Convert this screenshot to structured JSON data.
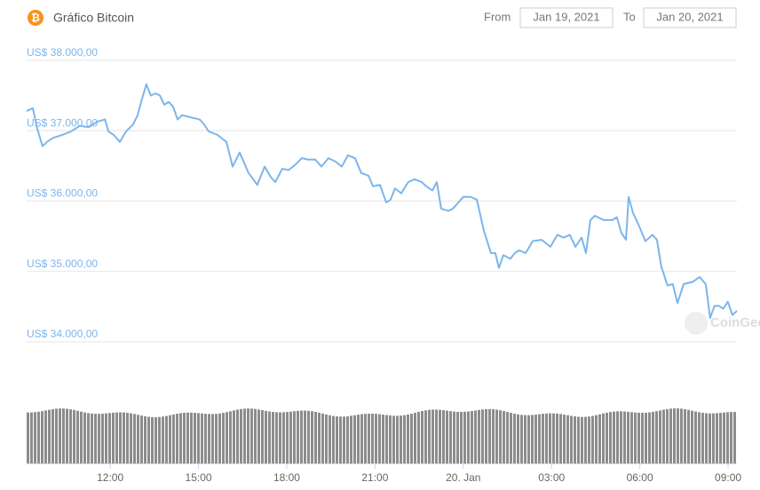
{
  "controls": {
    "from_label": "From",
    "from_date": "Jan 19, 2021",
    "to_label": "To",
    "to_date": "Jan 20, 2021"
  },
  "chart_data": {
    "type": "line",
    "title": "Gráfico Bitcoin",
    "watermark": "CoinGecko",
    "color": "#7cb5ec",
    "grid": true,
    "x": [
      9.16,
      9.37,
      9.52,
      9.7,
      9.85,
      10.07,
      10.37,
      10.67,
      10.97,
      11.27,
      11.57,
      11.82,
      11.94,
      12.12,
      12.33,
      12.54,
      12.78,
      12.93,
      13.08,
      13.23,
      13.38,
      13.54,
      13.69,
      13.84,
      13.99,
      14.14,
      14.29,
      14.44,
      14.74,
      15.04,
      15.19,
      15.35,
      15.65,
      15.95,
      16.16,
      16.4,
      16.7,
      17.0,
      17.25,
      17.46,
      17.61,
      17.85,
      18.06,
      18.3,
      18.51,
      18.72,
      18.97,
      19.18,
      19.42,
      19.66,
      19.87,
      20.08,
      20.32,
      20.53,
      20.78,
      20.93,
      21.17,
      21.38,
      21.53,
      21.68,
      21.89,
      22.13,
      22.34,
      22.59,
      22.74,
      22.95,
      23.1,
      23.25,
      23.49,
      23.64,
      23.79,
      24.0,
      24.25,
      24.46,
      24.7,
      24.94,
      25.09,
      25.21,
      25.36,
      25.6,
      25.75,
      25.9,
      26.12,
      26.36,
      26.66,
      26.96,
      27.2,
      27.41,
      27.62,
      27.81,
      28.02,
      28.17,
      28.32,
      28.47,
      28.77,
      29.07,
      29.22,
      29.37,
      29.53,
      29.62,
      29.77,
      29.98,
      30.19,
      30.43,
      30.58,
      30.73,
      30.94,
      31.12,
      31.28,
      31.49,
      31.79,
      32.03,
      32.24,
      32.39,
      32.54,
      32.69,
      32.84,
      32.99,
      33.15,
      33.3
    ],
    "values": [
      37280,
      37320,
      37030,
      36780,
      36840,
      36900,
      36940,
      36990,
      37070,
      37050,
      37130,
      37160,
      36990,
      36940,
      36840,
      36990,
      37090,
      37220,
      37450,
      37660,
      37500,
      37530,
      37500,
      37370,
      37410,
      37340,
      37160,
      37220,
      37190,
      37160,
      37090,
      36990,
      36940,
      36840,
      36490,
      36690,
      36400,
      36230,
      36490,
      36340,
      36270,
      36460,
      36440,
      36520,
      36610,
      36590,
      36590,
      36490,
      36610,
      36560,
      36490,
      36650,
      36610,
      36400,
      36360,
      36210,
      36230,
      35980,
      36020,
      36180,
      36110,
      36270,
      36310,
      36270,
      36210,
      36150,
      36270,
      35890,
      35860,
      35890,
      35960,
      36060,
      36060,
      36020,
      35580,
      35260,
      35260,
      35050,
      35230,
      35180,
      35260,
      35300,
      35260,
      35430,
      35450,
      35350,
      35520,
      35480,
      35520,
      35350,
      35480,
      35260,
      35730,
      35790,
      35730,
      35730,
      35770,
      35550,
      35450,
      36060,
      35830,
      35640,
      35430,
      35520,
      35450,
      35070,
      34800,
      34820,
      34550,
      34820,
      34850,
      34920,
      34820,
      34340,
      34510,
      34510,
      34470,
      34570,
      34380,
      34440
    ],
    "xlim": [
      9.16,
      33.3
    ],
    "xticks": [
      {
        "value": 12,
        "label": "12:00"
      },
      {
        "value": 15,
        "label": "15:00"
      },
      {
        "value": 18,
        "label": "18:00"
      },
      {
        "value": 21,
        "label": "21:00"
      },
      {
        "value": 24,
        "label": "20. Jan"
      },
      {
        "value": 27,
        "label": "03:00"
      },
      {
        "value": 30,
        "label": "06:00"
      },
      {
        "value": 33,
        "label": "09:00"
      }
    ],
    "ylim": [
      34000,
      38000
    ],
    "yticks": [
      {
        "value": 34000,
        "label": "US$ 34.000,00"
      },
      {
        "value": 35000,
        "label": "US$ 35.000,00"
      },
      {
        "value": 36000,
        "label": "US$ 36.000,00"
      },
      {
        "value": 37000,
        "label": "US$ 37.000,00"
      },
      {
        "value": 38000,
        "label": "US$ 38.000,00"
      }
    ]
  }
}
